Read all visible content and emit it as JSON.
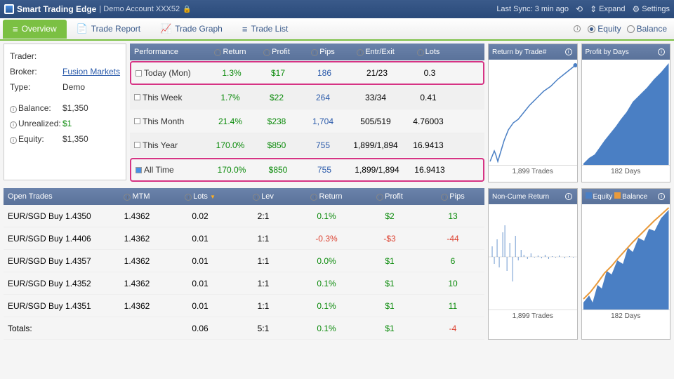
{
  "topbar": {
    "app_title": "Smart Trading Edge",
    "demo_text": "Demo Account XXX52",
    "last_sync": "Last Sync: 3 min ago",
    "expand": "Expand",
    "settings": "Settings"
  },
  "nav": {
    "tabs": [
      "Overview",
      "Trade Report",
      "Trade Graph",
      "Trade List"
    ],
    "radios": [
      "Equity",
      "Balance"
    ]
  },
  "account": {
    "trader_label": "Trader:",
    "broker_label": "Broker:",
    "broker_value": "Fusion Markets",
    "type_label": "Type:",
    "type_value": "Demo",
    "balance_label": "Balance:",
    "balance_value": "$1,350",
    "unrealized_label": "Unrealized:",
    "unrealized_value": "$1",
    "equity_label": "Equity:",
    "equity_value": "$1,350"
  },
  "perf": {
    "headers": [
      "Performance",
      "Return",
      "Profit",
      "Pips",
      "Entr/Exit",
      "Lots"
    ],
    "rows": [
      {
        "label": "Today (Mon)",
        "ret": "1.3%",
        "profit": "$17",
        "pips": "186",
        "ee": "21/23",
        "lots": "0.3",
        "hl": true
      },
      {
        "label": "This Week",
        "ret": "1.7%",
        "profit": "$22",
        "pips": "264",
        "ee": "33/34",
        "lots": "0.41",
        "shade": true
      },
      {
        "label": "This Month",
        "ret": "21.4%",
        "profit": "$238",
        "pips": "1,704",
        "ee": "505/519",
        "lots": "4.76003"
      },
      {
        "label": "This Year",
        "ret": "170.0%",
        "profit": "$850",
        "pips": "755",
        "ee": "1,899/1,894",
        "lots": "16.9413",
        "shade": true
      },
      {
        "label": "All Time",
        "ret": "170.0%",
        "profit": "$850",
        "pips": "755",
        "ee": "1,899/1,894",
        "lots": "16.9413",
        "hl": true,
        "blue": true
      }
    ]
  },
  "chart1": {
    "title": "Return by Trade#",
    "caption": "1,899 Trades",
    "color": "#4a7fc4"
  },
  "chart2": {
    "title": "Profit by Days",
    "caption": "182 Days",
    "color": "#4a7fc4"
  },
  "opentrades": {
    "headers": [
      "Open Trades",
      "MTM",
      "Lots",
      "Lev",
      "Return",
      "Profit",
      "Pips"
    ],
    "rows": [
      {
        "sym": "EUR/SGD Buy 1.4350",
        "mtm": "1.4362",
        "lots": "0.02",
        "lev": "2:1",
        "ret": "0.1%",
        "ret_c": "green",
        "profit": "$2",
        "profit_c": "green",
        "pips": "13",
        "pips_c": "green"
      },
      {
        "sym": "EUR/SGD Buy 1.4406",
        "mtm": "1.4362",
        "lots": "0.01",
        "lev": "1:1",
        "ret": "-0.3%",
        "ret_c": "red",
        "profit": "-$3",
        "profit_c": "red",
        "pips": "-44",
        "pips_c": "red"
      },
      {
        "sym": "EUR/SGD Buy 1.4357",
        "mtm": "1.4362",
        "lots": "0.01",
        "lev": "1:1",
        "ret": "0.0%",
        "ret_c": "green",
        "profit": "$1",
        "profit_c": "green",
        "pips": "6",
        "pips_c": "green"
      },
      {
        "sym": "EUR/SGD Buy 1.4352",
        "mtm": "1.4362",
        "lots": "0.01",
        "lev": "1:1",
        "ret": "0.1%",
        "ret_c": "green",
        "profit": "$1",
        "profit_c": "green",
        "pips": "10",
        "pips_c": "green"
      },
      {
        "sym": "EUR/SGD Buy 1.4351",
        "mtm": "1.4362",
        "lots": "0.01",
        "lev": "1:1",
        "ret": "0.1%",
        "ret_c": "green",
        "profit": "$1",
        "profit_c": "green",
        "pips": "11",
        "pips_c": "green"
      }
    ],
    "totals": {
      "label": "Totals:",
      "lots": "0.06",
      "lev": "5:1",
      "ret": "0.1%",
      "profit": "$1",
      "pips": "-4"
    }
  },
  "chart3": {
    "title": "Non-Cume Return",
    "caption": "1,899 Trades",
    "color": "#4a7fc4"
  },
  "chart4": {
    "title_eq": "Equity",
    "title_bal": "Balance",
    "eq_color": "#4a7fc4",
    "bal_color": "#e89a3c",
    "caption": "182 Days"
  }
}
